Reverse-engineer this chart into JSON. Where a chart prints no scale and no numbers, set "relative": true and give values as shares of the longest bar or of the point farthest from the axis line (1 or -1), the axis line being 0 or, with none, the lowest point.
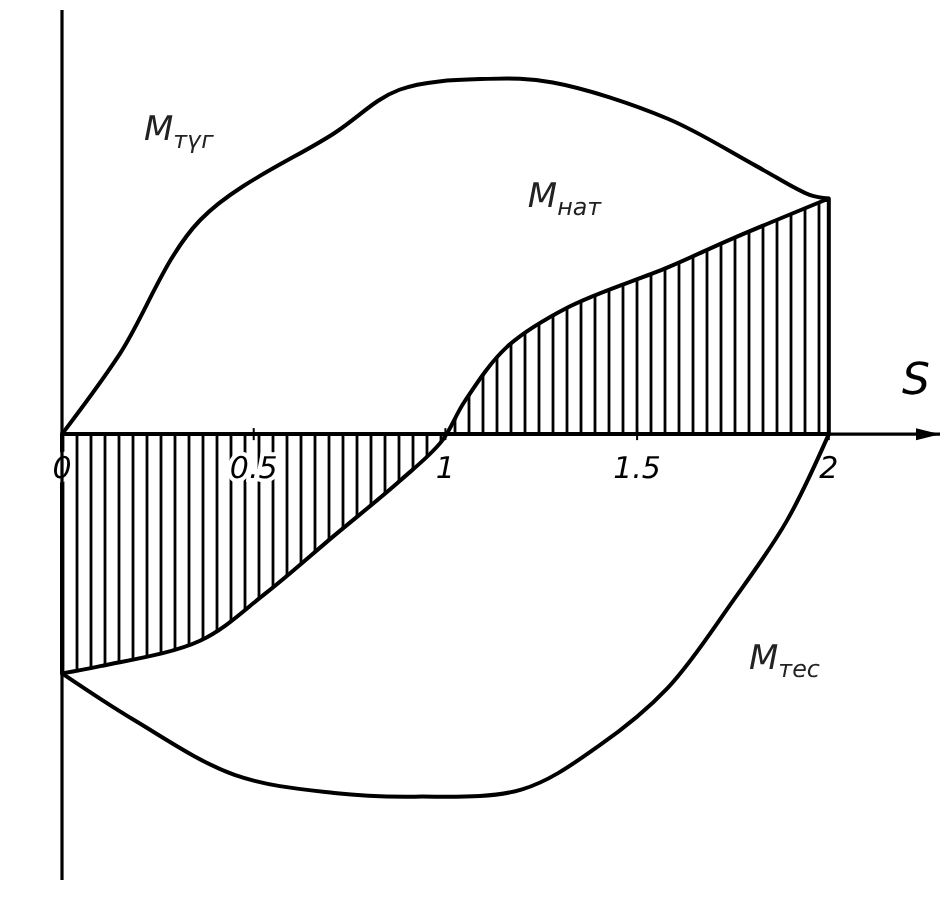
{
  "chart_data": {
    "type": "line",
    "xlabel": "S",
    "relative": true,
    "xlim": [
      0,
      2.29
    ],
    "xticks": [
      0,
      0.5,
      1,
      1.5,
      2
    ],
    "marker": "none",
    "line_style": "solid",
    "series": [
      {
        "name": "M$_{түг}$",
        "color": "#000000",
        "x": [
          0,
          0.15,
          0.36,
          0.71,
          0.88,
          1.11,
          1.28,
          1.58,
          1.81,
          1.95,
          2
        ],
        "values": [
          0,
          0.22,
          0.59,
          0.83,
          0.95,
          0.98,
          0.97,
          0.87,
          0.74,
          0.66,
          0.65
        ]
      },
      {
        "name": "M$_{нат}$",
        "type": "area",
        "color": "#000000",
        "x": [
          0,
          0.1,
          0.36,
          0.53,
          0.71,
          0.88,
          0.99,
          1.05,
          1.16,
          1.32,
          1.58,
          1.75,
          2
        ],
        "values": [
          -0.66,
          -0.64,
          -0.57,
          -0.44,
          -0.28,
          -0.13,
          -0.02,
          0.09,
          0.24,
          0.35,
          0.46,
          0.54,
          0.65
        ]
      },
      {
        "name": "M$_{тес}$",
        "color": "#000000",
        "x": [
          0,
          0.19,
          0.45,
          0.71,
          0.92,
          1.2,
          1.4,
          1.58,
          1.75,
          1.89,
          2
        ],
        "values": [
          -0.66,
          -0.79,
          -0.94,
          -0.99,
          -1,
          -0.98,
          -0.86,
          -0.7,
          -0.46,
          -0.24,
          0
        ]
      }
    ]
  }
}
